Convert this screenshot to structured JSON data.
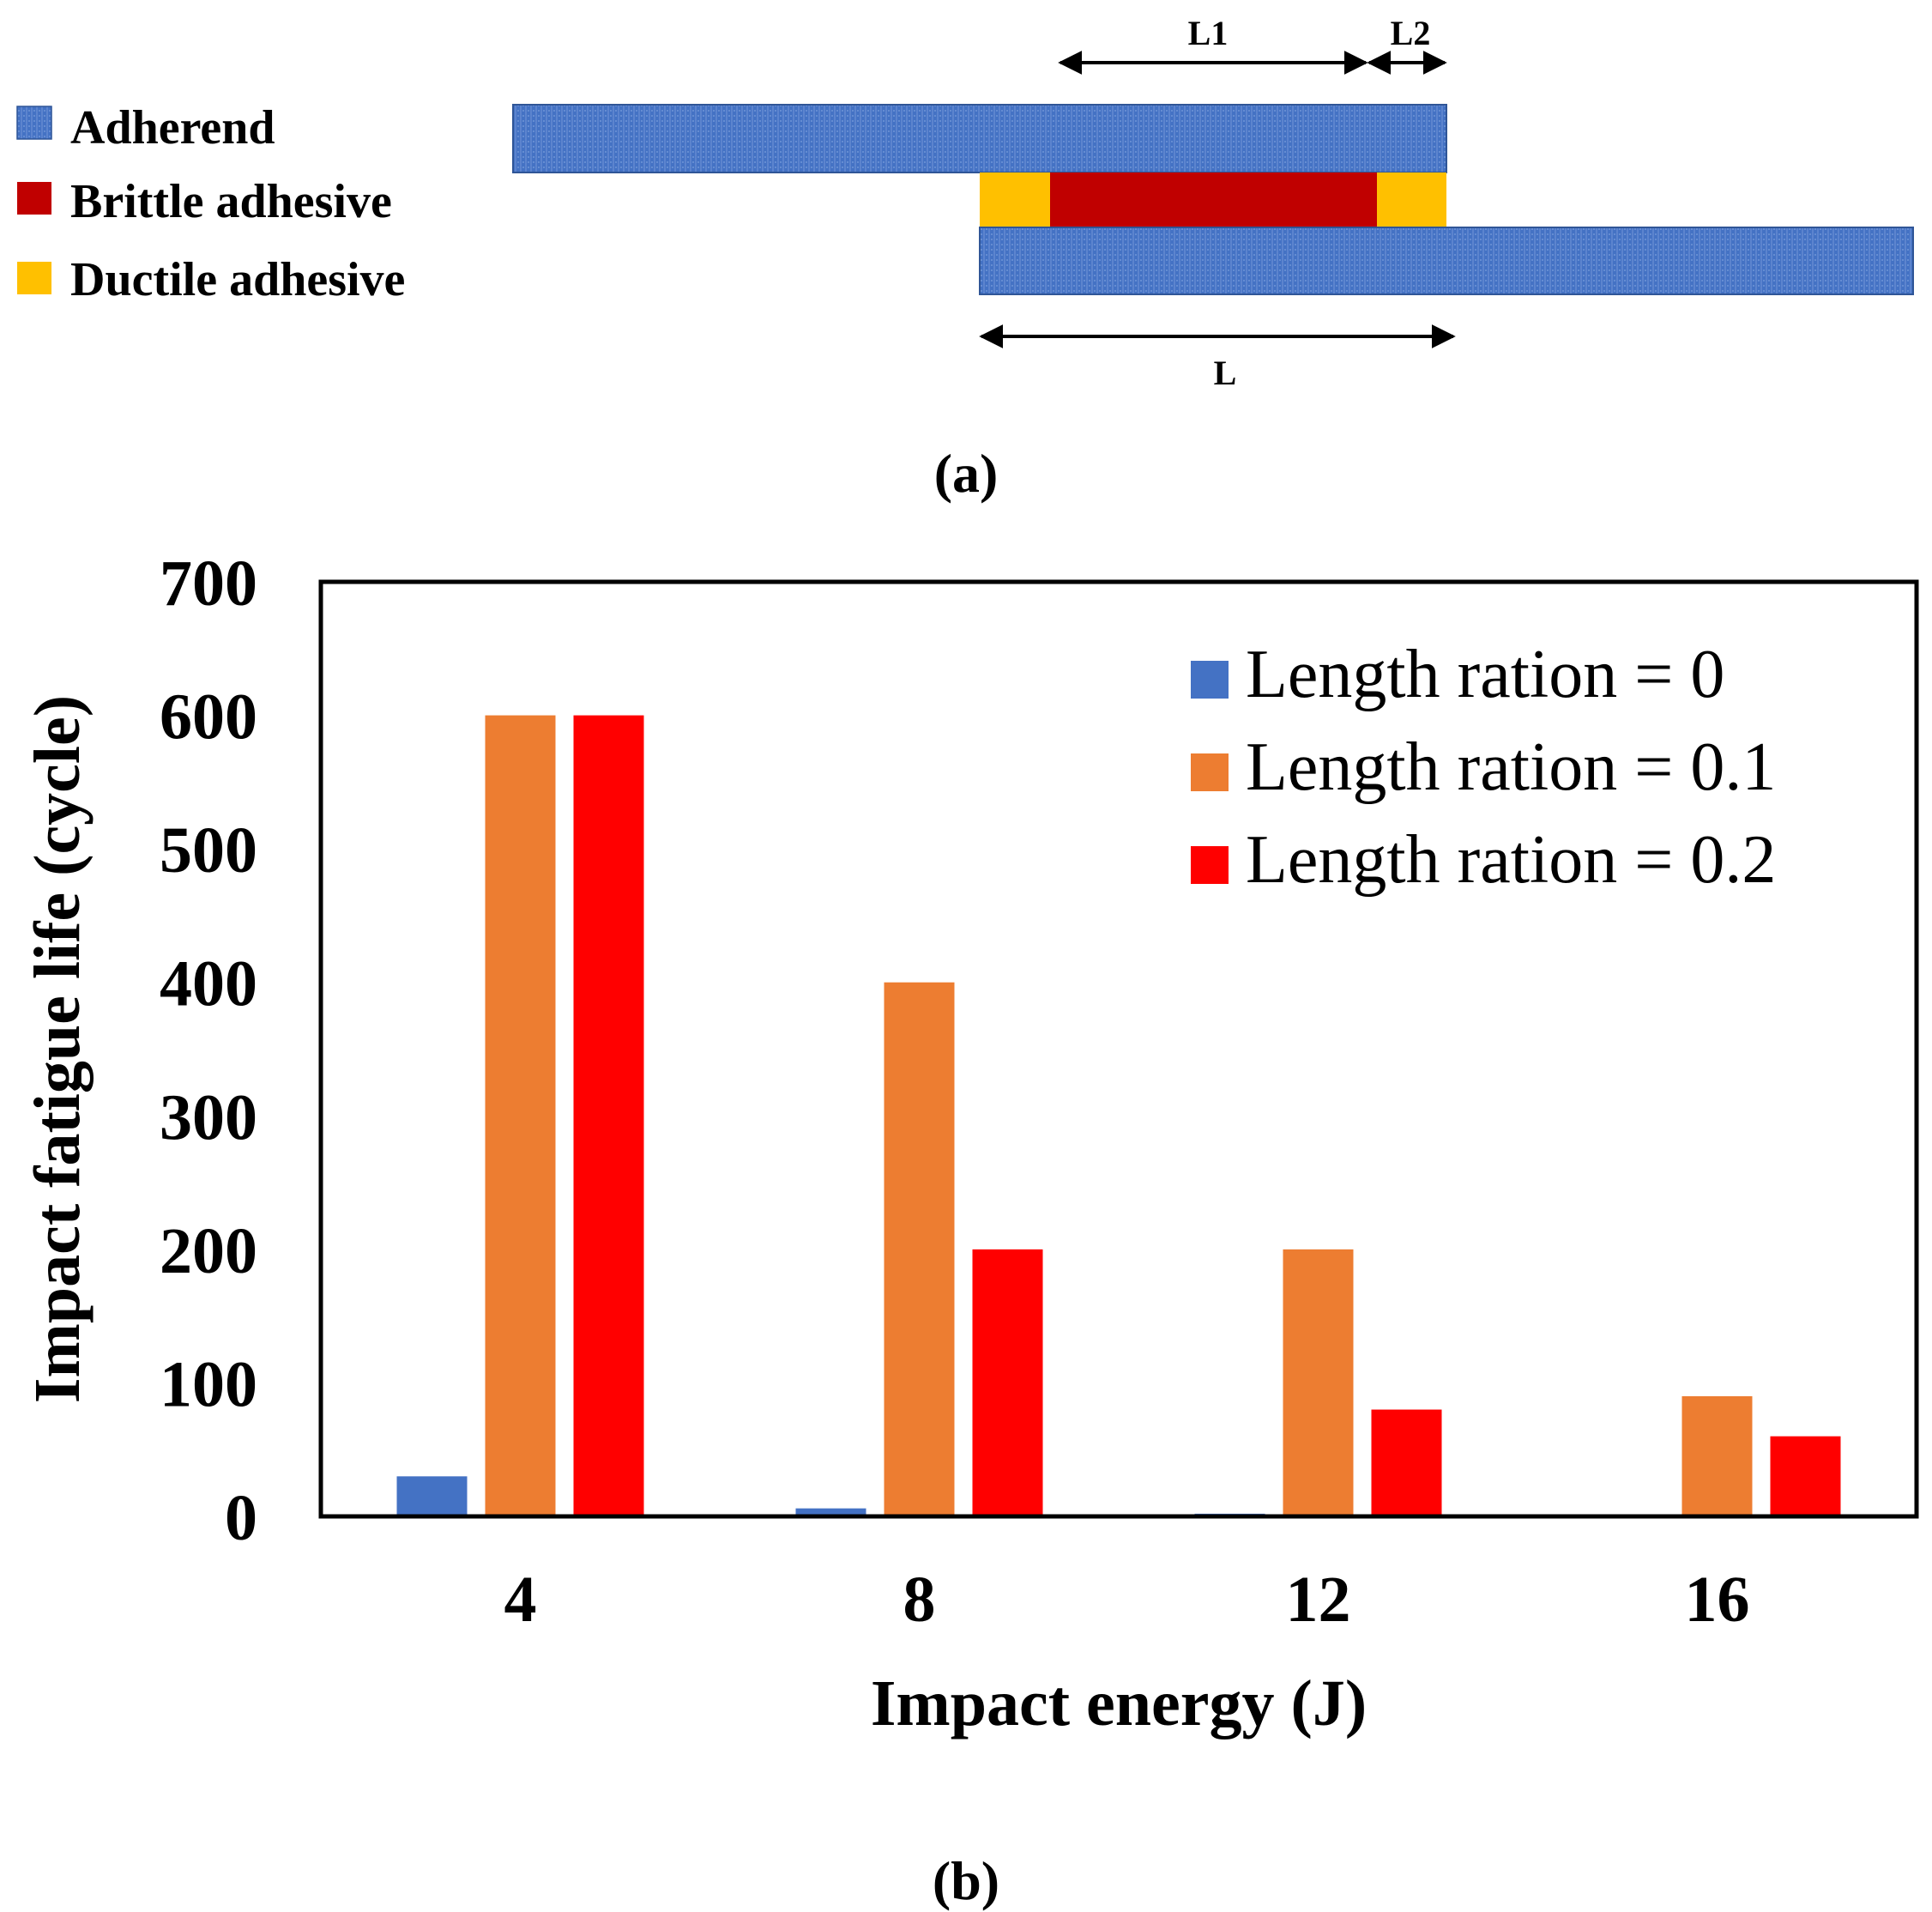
{
  "colors": {
    "adherend": "#4472C4",
    "brittle": "#C00000",
    "ductile": "#FFC000",
    "series": [
      "#4472C4",
      "#ED7D31",
      "#FF0000"
    ],
    "axis": "#000000"
  },
  "schematic": {
    "legend": [
      {
        "label": "Adherend",
        "swatch": "adherend"
      },
      {
        "label": "Brittle adhesive",
        "swatch": "brittle"
      },
      {
        "label": "Ductile adhesive",
        "swatch": "ductile"
      }
    ],
    "dimensions": {
      "L1": "L1",
      "L2": "L2",
      "L": "L"
    },
    "caption": "(a)"
  },
  "chart_data": {
    "type": "bar",
    "title": "",
    "xlabel": "Impact energy (J)",
    "ylabel": "Impact fatigue life (cycle)",
    "categories": [
      "4",
      "8",
      "12",
      "16"
    ],
    "ylim": [
      0,
      700
    ],
    "yticks": [
      "0",
      "100",
      "200",
      "300",
      "400",
      "500",
      "600",
      "700"
    ],
    "grid": false,
    "legend_position": "top-right",
    "series": [
      {
        "name": "Length ration = 0",
        "values": [
          30,
          6,
          2,
          0
        ]
      },
      {
        "name": "Length ration = 0.1",
        "values": [
          600,
          400,
          200,
          90
        ]
      },
      {
        "name": "Length ration = 0.2",
        "values": [
          600,
          200,
          80,
          60
        ]
      }
    ],
    "caption": "(b)"
  }
}
